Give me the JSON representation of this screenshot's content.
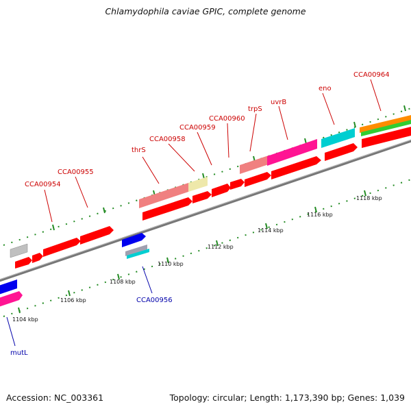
{
  "title": "Chlamydophila caviae GPIC, complete genome",
  "footer": {
    "accession": "Accession: NC_003361",
    "summary": "Topology: circular; Length: 1,173,390 bp; Genes: 1,039"
  },
  "tick_labels": [
    "1104 kbp",
    "1106 kbp",
    "1108 kbp",
    "1110 kbp",
    "1112 kbp",
    "1114 kbp",
    "1116 kbp",
    "1118 kbp"
  ],
  "gene_labels": [
    {
      "text": "CCA00954",
      "color": "red"
    },
    {
      "text": "CCA00955",
      "color": "red"
    },
    {
      "text": "thrS",
      "color": "red"
    },
    {
      "text": "CCA00958",
      "color": "red"
    },
    {
      "text": "CCA00959",
      "color": "red"
    },
    {
      "text": "CCA00960",
      "color": "red"
    },
    {
      "text": "trpS",
      "color": "red"
    },
    {
      "text": "uvrB",
      "color": "red"
    },
    {
      "text": "eno",
      "color": "red"
    },
    {
      "text": "CCA00964",
      "color": "red"
    },
    {
      "text": "CCA00956",
      "color": "blue"
    },
    {
      "text": "mutL",
      "color": "blue"
    }
  ],
  "colors": {
    "cds": "#ff0000",
    "gene_pink": "#f08080",
    "gene_magenta": "#ff1493",
    "gene_cyan": "#00ced1",
    "gene_blue": "#0000ee",
    "gene_yellow": "#eee8aa",
    "gene_gray": "#c0c0c0",
    "gene_orange": "#ff8c00",
    "gene_green": "#32cd32",
    "backbone": "#808080",
    "tick": "#228b22"
  }
}
